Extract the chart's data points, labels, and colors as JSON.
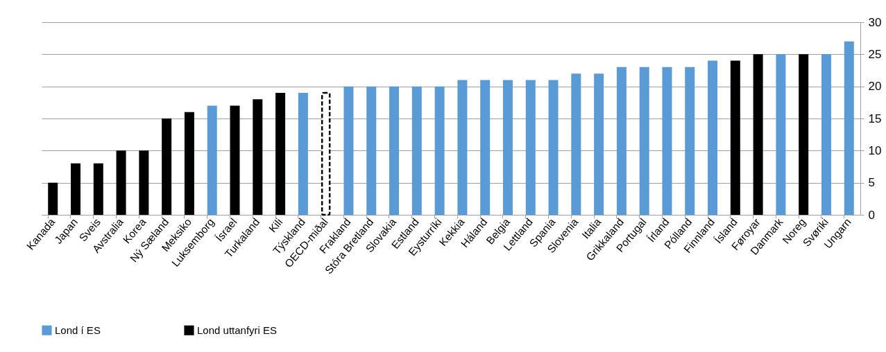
{
  "chart_data": {
    "type": "bar",
    "stacked": true,
    "grid": "y",
    "legend": "bottom",
    "ylim": [
      0,
      30
    ],
    "yticks": [
      0,
      5,
      10,
      15,
      20,
      25,
      30
    ],
    "categories": [
      "Kanada",
      "Japan",
      "Sveis",
      "Avstralia",
      "Korea",
      "Ný Sæland",
      "Meksiko",
      "Luksemborg",
      "Ísrael",
      "Turkaland",
      "Kili",
      "Týskland",
      "OECD-miðal",
      "Frakland",
      "Stóra Bretland",
      "Slovakia",
      "Estland",
      "Eysturríki",
      "Kekkia",
      "Háland",
      "Belgia",
      "Lettland",
      "Spania",
      "Slovenia",
      "Italia",
      "Grikkaland",
      "Portugal",
      "Írland",
      "Pólland",
      "Finnland",
      "Ísland",
      "Føroyar",
      "Danmark",
      "Noreg",
      "Svøriki",
      "Ungarn"
    ],
    "series": [
      {
        "name": "Lond í ES",
        "color": "#5b9bd5",
        "values": [
          null,
          null,
          null,
          null,
          null,
          null,
          null,
          17,
          null,
          null,
          null,
          19,
          null,
          20,
          20,
          20,
          20,
          20,
          21,
          21,
          21,
          21,
          21,
          22,
          22,
          23,
          23,
          23,
          23,
          24,
          null,
          null,
          25,
          null,
          25,
          27
        ]
      },
      {
        "name": "Lond uttanfyri ES",
        "color": "#000000",
        "values": [
          5,
          8,
          8,
          10,
          10,
          15,
          16,
          null,
          17,
          18,
          19,
          null,
          null,
          null,
          null,
          null,
          null,
          null,
          null,
          null,
          null,
          null,
          null,
          null,
          null,
          null,
          null,
          null,
          null,
          null,
          24,
          25,
          null,
          25,
          null,
          null
        ]
      },
      {
        "color": "#ffffff",
        "line_style": "dashed",
        "values": [
          null,
          null,
          null,
          null,
          null,
          null,
          null,
          null,
          null,
          null,
          null,
          null,
          19,
          null,
          null,
          null,
          null,
          null,
          null,
          null,
          null,
          null,
          null,
          null,
          null,
          null,
          null,
          null,
          null,
          null,
          null,
          null,
          null,
          null,
          null,
          null
        ]
      }
    ]
  }
}
